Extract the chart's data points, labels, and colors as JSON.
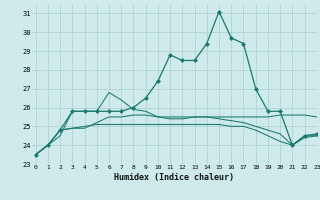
{
  "xlabel": "Humidex (Indice chaleur)",
  "ylabel": "",
  "bg_color": "#ceeaea",
  "grid_color": "#aacece",
  "line_color": "#1a7a6e",
  "x_values": [
    0,
    1,
    2,
    3,
    4,
    5,
    6,
    7,
    8,
    9,
    10,
    11,
    12,
    13,
    14,
    15,
    16,
    17,
    18,
    19,
    20,
    21,
    22,
    23
  ],
  "series": [
    [
      23.5,
      24.0,
      24.5,
      25.8,
      25.8,
      25.8,
      26.8,
      26.4,
      25.9,
      25.8,
      25.5,
      25.4,
      25.4,
      25.5,
      25.5,
      25.5,
      25.5,
      25.5,
      25.5,
      25.5,
      25.6,
      25.6,
      25.6,
      25.5
    ],
    [
      23.5,
      24.0,
      24.8,
      24.9,
      24.9,
      25.2,
      25.5,
      25.5,
      25.6,
      25.6,
      25.5,
      25.5,
      25.5,
      25.5,
      25.5,
      25.4,
      25.3,
      25.2,
      25.0,
      24.8,
      24.6,
      24.0,
      24.5,
      24.5
    ],
    [
      23.5,
      24.0,
      24.8,
      25.8,
      25.8,
      25.8,
      25.8,
      25.8,
      26.0,
      26.5,
      27.4,
      28.8,
      28.5,
      28.5,
      29.4,
      31.1,
      29.7,
      29.4,
      27.0,
      25.8,
      25.8,
      24.0,
      24.5,
      24.6
    ],
    [
      23.5,
      24.0,
      24.8,
      24.9,
      25.0,
      25.1,
      25.1,
      25.1,
      25.1,
      25.1,
      25.1,
      25.1,
      25.1,
      25.1,
      25.1,
      25.1,
      25.0,
      25.0,
      24.8,
      24.5,
      24.2,
      24.0,
      24.4,
      24.5
    ]
  ],
  "marker_series": 2,
  "ylim": [
    23,
    31.5
  ],
  "xlim": [
    -0.3,
    23
  ],
  "yticks": [
    23,
    24,
    25,
    26,
    27,
    28,
    29,
    30,
    31
  ],
  "xticks": [
    0,
    1,
    2,
    3,
    4,
    5,
    6,
    7,
    8,
    9,
    10,
    11,
    12,
    13,
    14,
    15,
    16,
    17,
    18,
    19,
    20,
    21,
    22,
    23
  ]
}
